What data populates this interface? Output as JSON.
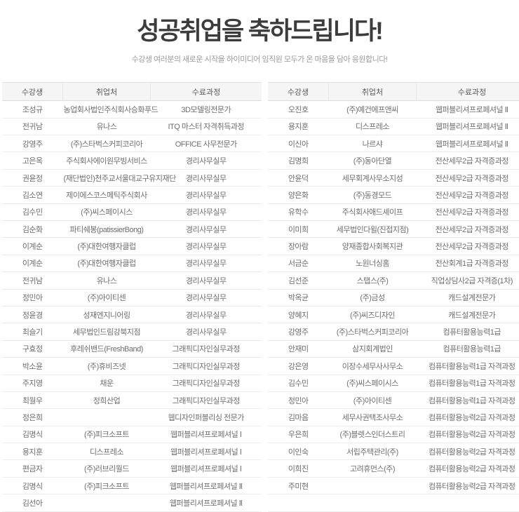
{
  "header": {
    "title": "성공취업을 축하드립니다!",
    "subtitle": "수강생 여러분의 새로운 시작을 하이미디어 임직원 모두가 온 마음을 담아 응원합니다!"
  },
  "colors": {
    "title_text": "#3c3c3c",
    "subtitle_text": "#9b9b9b",
    "table_text": "#6e6e6e",
    "header_row_bg": "#f5f5f5",
    "row_border": "#ececec"
  },
  "tables": {
    "columns": [
      "수강생",
      "취업처",
      "수료과정"
    ],
    "left": {
      "rows": [
        [
          "조성규",
          "농업회사법인주식회사승화푸드",
          "3D모델링전문가"
        ],
        [
          "전귀남",
          "유나스",
          "ITQ 마스터 자격취득과정"
        ],
        [
          "강영주",
          "(주)스타벅스커피코리아",
          "OFFICE 사무전문가"
        ],
        [
          "고은옥",
          "주식회사에이원무빙서비스",
          "경리사무실무"
        ],
        [
          "권윤정",
          "(재단법인)천주교서울대교구유지재단",
          "경리사무실무"
        ],
        [
          "김소연",
          "제이에스코스메틱주식회사",
          "경리사무실무"
        ],
        [
          "김수민",
          "(주)씨스페이시스",
          "경리사무실무"
        ],
        [
          "김순화",
          "파티쉐봉(patissierBong)",
          "경리사무실무"
        ],
        [
          "이계순",
          "(주)대한여행자클럽",
          "경리사무실무"
        ],
        [
          "이계순",
          "(주)대한여행자클럽",
          "경리사무실무"
        ],
        [
          "전귀남",
          "유나스",
          "경리사무실무"
        ],
        [
          "정민아",
          "(주)아이티센",
          "경리사무실무"
        ],
        [
          "정윤경",
          "성재엔지니어링",
          "경리사무실무"
        ],
        [
          "최슬기",
          "세무법인드림강북지점",
          "경리사무실무"
        ],
        [
          "구효정",
          "후레쉬밴드(FreshBand)",
          "그래픽디자인실무과정"
        ],
        [
          "박소윤",
          "(주)휴비즈넷",
          "그래픽디자인실무과정"
        ],
        [
          "주지영",
          "채운",
          "그래픽디자인실무과정"
        ],
        [
          "최월우",
          "정희산업",
          "그래픽디자인실무과정"
        ],
        [
          "정은희",
          "",
          "웹디자인퍼블리싱 전문가"
        ],
        [
          "김명식",
          "(주)피크소프트",
          "웹퍼블리셔프로페셔널 Ⅰ"
        ],
        [
          "용지훈",
          "디스프레소",
          "웹퍼블리셔프로페셔널 Ⅰ"
        ],
        [
          "편금자",
          "(주)러브리월드",
          "웹퍼블리셔프로페셔널 Ⅰ"
        ],
        [
          "김명식",
          "(주)피크소프트",
          "웹퍼블리셔프로페셔널 Ⅱ"
        ],
        [
          "김선아",
          "",
          "웹퍼블리셔프로페셔널 Ⅱ"
        ]
      ]
    },
    "right": {
      "rows": [
        [
          "오진호",
          "(주)예건에프앤씨",
          "웹퍼블리셔프로페셔널 Ⅱ"
        ],
        [
          "용지훈",
          "디스프레소",
          "웹퍼블리셔프로페셔널 Ⅱ"
        ],
        [
          "이신아",
          "나르샤",
          "웹퍼블리셔프로페셔널 Ⅱ"
        ],
        [
          "김명희",
          "(주)동아단열",
          "전산세무2급 자격증과정"
        ],
        [
          "안윤덕",
          "세무회계사무소지성",
          "전산세무2급 자격증과정"
        ],
        [
          "양은화",
          "(주)동경모드",
          "전산세무2급 자격증과정"
        ],
        [
          "유학수",
          "주식회사애드셰이프",
          "전산세무2급 자격증과정"
        ],
        [
          "이미희",
          "세무법인다윌(진접지점)",
          "전산세무2급 자격증과정"
        ],
        [
          "장아람",
          "양재종합사회복지관",
          "전산세무2급 자격증과정"
        ],
        [
          "서금순",
          "노원너싱홈",
          "전산회계1급 자격증과정"
        ],
        [
          "김선준",
          "스탭스(주)",
          "직업상담사2급 자격증(1차)"
        ],
        [
          "박옥균",
          "(주)금성",
          "캐드설계전문가"
        ],
        [
          "양혜지",
          "(주)씨즈디자인",
          "캐드설계전문가"
        ],
        [
          "강영주",
          "(주)스타벅스커피코리아",
          "컴퓨터활용능력1급"
        ],
        [
          "안재미",
          "삼지회계법인",
          "컴퓨터활용능력1급"
        ],
        [
          "강은영",
          "이장수세무사사무소",
          "컴퓨터활용능력1급 자격과정"
        ],
        [
          "김수민",
          "(주)씨스페이시스",
          "컴퓨터활용능력1급 자격과정"
        ],
        [
          "정민아",
          "(주)아이티센",
          "컴퓨터활용능력1급 자격과정"
        ],
        [
          "김마음",
          "세무사권택조사무소",
          "컴퓨터활용능력2급 자격과정"
        ],
        [
          "우은희",
          "(주)블렛스인더스트리",
          "컴퓨터활용능력2급 자격과정"
        ],
        [
          "이인숙",
          "서립주택관리(주)",
          "컴퓨터활용능력2급 자격과정"
        ],
        [
          "이희진",
          "고려휴먼스(주)",
          "컴퓨터활용능력2급 자격과정"
        ],
        [
          "주미현",
          "",
          "컴퓨터활용능력2급 자격과정"
        ],
        [
          "",
          "",
          ""
        ]
      ]
    }
  }
}
